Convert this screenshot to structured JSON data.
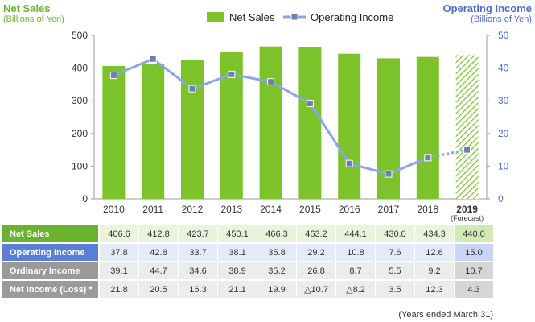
{
  "header": {
    "left_title": "Net Sales",
    "left_sub": "(Billions of Yen)",
    "right_title": "Operating Income",
    "right_sub": "(Billions of Yen)"
  },
  "legend": {
    "net_sales": "Net Sales",
    "operating_income": "Operating Income"
  },
  "colors": {
    "net_sales_bar": "#7cc22a",
    "operating_line": "#8aa6e6",
    "operating_marker": "#6f7fb0",
    "left_axis": "#6ab42d",
    "right_axis": "#4a6fd0"
  },
  "chart_data": {
    "type": "bar",
    "categories": [
      "2010",
      "2011",
      "2012",
      "2013",
      "2014",
      "2015",
      "2016",
      "2017",
      "2018",
      "2019"
    ],
    "forecast_label": "(Forecast)",
    "series": [
      {
        "name": "Net Sales",
        "axis": "left",
        "values": [
          406.6,
          412.8,
          423.7,
          450.1,
          466.3,
          463.2,
          444.1,
          430.0,
          434.3,
          440.0
        ]
      },
      {
        "name": "Operating Income",
        "axis": "right",
        "values": [
          37.8,
          42.8,
          33.7,
          38.1,
          35.8,
          29.2,
          10.8,
          7.6,
          12.6,
          15.0
        ]
      }
    ],
    "ylim_left": [
      0,
      500
    ],
    "yticks_left": [
      "0",
      "100",
      "200",
      "300",
      "400",
      "500"
    ],
    "ylim_right": [
      0,
      50
    ],
    "yticks_right": [
      "0",
      "10",
      "20",
      "30",
      "40",
      "50"
    ],
    "forecast_index": 9,
    "legend_position": "top-center",
    "grid": false
  },
  "table": {
    "rows": [
      {
        "label": "Net Sales",
        "values": [
          "406.6",
          "412.8",
          "423.7",
          "450.1",
          "466.3",
          "463.2",
          "444.1",
          "430.0",
          "434.3",
          "440.0"
        ]
      },
      {
        "label": "Operating Income",
        "values": [
          "37.8",
          "42.8",
          "33.7",
          "38.1",
          "35.8",
          "29.2",
          "10.8",
          "7.6",
          "12.6",
          "15.0"
        ]
      },
      {
        "label": "Ordinary Income",
        "values": [
          "39.1",
          "44.7",
          "34.6",
          "38.9",
          "35.2",
          "26.8",
          "8.7",
          "5.5",
          "9.2",
          "10.7"
        ]
      },
      {
        "label": "Net Income (Loss) *",
        "values": [
          "21.8",
          "20.5",
          "16.3",
          "21.1",
          "19.9",
          "△10.7",
          "△8.2",
          "3.5",
          "12.3",
          "4.3"
        ]
      }
    ]
  },
  "footnote": "(Years ended March 31)"
}
